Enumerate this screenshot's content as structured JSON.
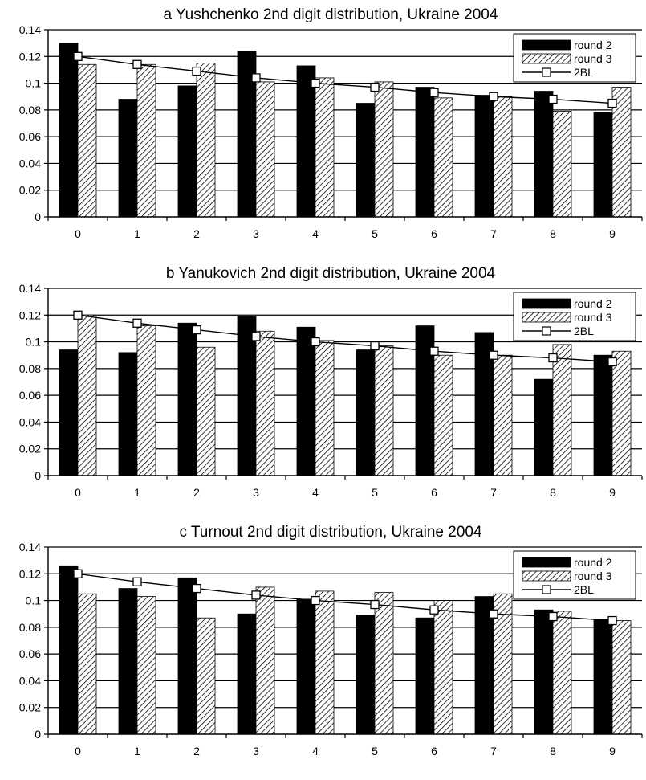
{
  "chart_data": [
    {
      "panel_letter": "a",
      "title": "Yushchenko 2nd digit distribution, Ukraine 2004",
      "type": "bar",
      "categories": [
        "0",
        "1",
        "2",
        "3",
        "4",
        "5",
        "6",
        "7",
        "8",
        "9"
      ],
      "yticks": [
        "0",
        "0.02",
        "0.04",
        "0.06",
        "0.08",
        "0.1",
        "0.12",
        "0.14"
      ],
      "ylim": [
        0,
        0.14
      ],
      "xlabel": "",
      "ylabel": "",
      "grid": "horizontal",
      "legend_position": "top-right",
      "series": [
        {
          "name": "round 2",
          "type": "bar",
          "style": "solid",
          "values": [
            0.13,
            0.088,
            0.098,
            0.124,
            0.113,
            0.085,
            0.097,
            0.091,
            0.094,
            0.078
          ]
        },
        {
          "name": "round 3",
          "type": "bar",
          "style": "hatched",
          "values": [
            0.114,
            0.114,
            0.115,
            0.101,
            0.104,
            0.101,
            0.089,
            0.09,
            0.079,
            0.097
          ]
        },
        {
          "name": "2BL",
          "type": "line",
          "style": "line-square-markers",
          "values": [
            0.12,
            0.114,
            0.109,
            0.104,
            0.1,
            0.097,
            0.093,
            0.09,
            0.088,
            0.085
          ]
        }
      ]
    },
    {
      "panel_letter": "b",
      "title": "Yanukovich 2nd digit distribution, Ukraine 2004",
      "type": "bar",
      "categories": [
        "0",
        "1",
        "2",
        "3",
        "4",
        "5",
        "6",
        "7",
        "8",
        "9"
      ],
      "yticks": [
        "0",
        "0.02",
        "0.04",
        "0.06",
        "0.08",
        "0.1",
        "0.12",
        "0.14"
      ],
      "ylim": [
        0,
        0.14
      ],
      "xlabel": "",
      "ylabel": "",
      "grid": "horizontal",
      "legend_position": "top-right",
      "series": [
        {
          "name": "round 2",
          "type": "bar",
          "style": "solid",
          "values": [
            0.094,
            0.092,
            0.114,
            0.119,
            0.111,
            0.094,
            0.112,
            0.107,
            0.072,
            0.09
          ]
        },
        {
          "name": "round 3",
          "type": "bar",
          "style": "hatched",
          "values": [
            0.12,
            0.112,
            0.096,
            0.108,
            0.101,
            0.097,
            0.09,
            0.09,
            0.098,
            0.093
          ]
        },
        {
          "name": "2BL",
          "type": "line",
          "style": "line-square-markers",
          "values": [
            0.12,
            0.114,
            0.109,
            0.104,
            0.1,
            0.097,
            0.093,
            0.09,
            0.088,
            0.085
          ]
        }
      ]
    },
    {
      "panel_letter": "c",
      "title": "Turnout 2nd digit distribution, Ukraine 2004",
      "type": "bar",
      "categories": [
        "0",
        "1",
        "2",
        "3",
        "4",
        "5",
        "6",
        "7",
        "8",
        "9"
      ],
      "yticks": [
        "0",
        "0.02",
        "0.04",
        "0.06",
        "0.08",
        "0.1",
        "0.12",
        "0.14"
      ],
      "ylim": [
        0,
        0.14
      ],
      "xlabel": "",
      "ylabel": "",
      "grid": "horizontal",
      "legend_position": "top-right",
      "series": [
        {
          "name": "round 2",
          "type": "bar",
          "style": "solid",
          "values": [
            0.126,
            0.109,
            0.117,
            0.09,
            0.101,
            0.089,
            0.087,
            0.103,
            0.093,
            0.086
          ]
        },
        {
          "name": "round 3",
          "type": "bar",
          "style": "hatched",
          "values": [
            0.105,
            0.103,
            0.087,
            0.11,
            0.107,
            0.106,
            0.1,
            0.105,
            0.092,
            0.085
          ]
        },
        {
          "name": "2BL",
          "type": "line",
          "style": "line-square-markers",
          "values": [
            0.12,
            0.114,
            0.109,
            0.104,
            0.1,
            0.097,
            0.093,
            0.09,
            0.088,
            0.085
          ]
        }
      ]
    }
  ]
}
